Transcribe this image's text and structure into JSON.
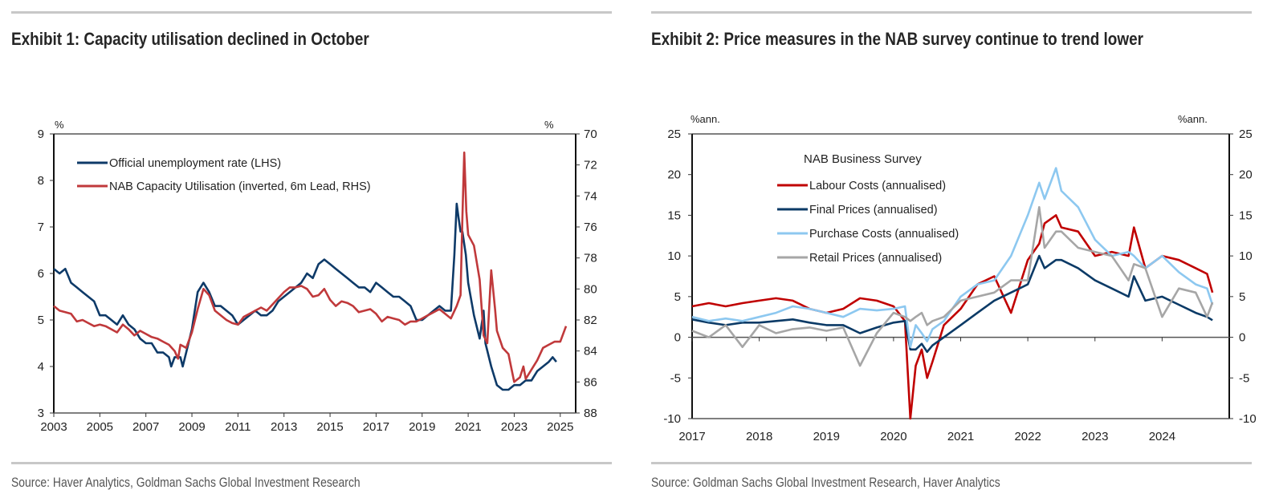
{
  "exhibit1": {
    "title": "Exhibit 1: Capacity utilisation declined in October",
    "source": "Source: Haver Analytics, Goldman Sachs Global Investment Research"
  },
  "exhibit2": {
    "title": "Exhibit 2: Price measures in the NAB survey continue to trend lower",
    "source": "Source: Goldman Sachs Global Investment Research, Haver Analytics"
  },
  "chart_data": [
    {
      "type": "line",
      "title": "Exhibit 1: Capacity utilisation declined in October",
      "xlabel": "",
      "ylabel_left": "%",
      "ylabel_right": "%",
      "xlim": [
        2003,
        2025.67
      ],
      "ylim_left": [
        3,
        9
      ],
      "ylim_right": [
        88,
        70
      ],
      "right_axis_inverted": true,
      "x_ticks": [
        "2003",
        "2005",
        "2007",
        "2009",
        "2011",
        "2013",
        "2015",
        "2017",
        "2019",
        "2021",
        "2023",
        "2025"
      ],
      "y_ticks_left": [
        "3",
        "4",
        "5",
        "6",
        "7",
        "8",
        "9"
      ],
      "y_ticks_right": [
        "70",
        "72",
        "74",
        "76",
        "78",
        "80",
        "82",
        "84",
        "86",
        "88"
      ],
      "grid": false,
      "legend_position": "top-left",
      "series": [
        {
          "name": "Official unemployment rate (LHS)",
          "axis": "left",
          "color": "#0e3a68",
          "x": [
            2003.0,
            2003.25,
            2003.5,
            2003.75,
            2004.0,
            2004.25,
            2004.5,
            2004.75,
            2005.0,
            2005.25,
            2005.5,
            2005.75,
            2006.0,
            2006.25,
            2006.5,
            2006.75,
            2007.0,
            2007.25,
            2007.5,
            2007.75,
            2008.0,
            2008.1,
            2008.25,
            2008.5,
            2008.6,
            2008.75,
            2009.0,
            2009.25,
            2009.5,
            2009.75,
            2010.0,
            2010.25,
            2010.5,
            2010.75,
            2011.0,
            2011.25,
            2011.5,
            2011.75,
            2012.0,
            2012.25,
            2012.5,
            2012.75,
            2013.0,
            2013.25,
            2013.5,
            2013.75,
            2014.0,
            2014.25,
            2014.5,
            2014.75,
            2015.0,
            2015.25,
            2015.5,
            2015.75,
            2016.0,
            2016.25,
            2016.5,
            2016.75,
            2017.0,
            2017.25,
            2017.5,
            2017.75,
            2018.0,
            2018.25,
            2018.5,
            2018.75,
            2019.0,
            2019.25,
            2019.5,
            2019.75,
            2020.0,
            2020.25,
            2020.4,
            2020.5,
            2020.58,
            2020.67,
            2020.75,
            2020.9,
            2021.0,
            2021.25,
            2021.5,
            2021.67,
            2021.75,
            2022.0,
            2022.25,
            2022.5,
            2022.75,
            2023.0,
            2023.25,
            2023.5,
            2023.75,
            2024.0,
            2024.25,
            2024.5,
            2024.67,
            2024.83
          ],
          "values": [
            6.1,
            6.0,
            6.1,
            5.8,
            5.7,
            5.6,
            5.5,
            5.4,
            5.1,
            5.1,
            5.0,
            4.9,
            5.1,
            4.9,
            4.8,
            4.6,
            4.5,
            4.5,
            4.3,
            4.3,
            4.2,
            4.0,
            4.2,
            4.2,
            4.0,
            4.3,
            4.8,
            5.6,
            5.8,
            5.6,
            5.3,
            5.3,
            5.2,
            5.1,
            4.9,
            5.0,
            5.1,
            5.2,
            5.1,
            5.1,
            5.2,
            5.4,
            5.5,
            5.6,
            5.7,
            5.8,
            6.0,
            5.9,
            6.2,
            6.3,
            6.2,
            6.1,
            6.0,
            5.9,
            5.8,
            5.7,
            5.7,
            5.6,
            5.8,
            5.7,
            5.6,
            5.5,
            5.5,
            5.4,
            5.3,
            5.0,
            5.0,
            5.1,
            5.2,
            5.3,
            5.2,
            5.2,
            6.4,
            7.5,
            7.2,
            6.9,
            6.9,
            6.4,
            5.8,
            5.1,
            4.6,
            5.2,
            4.5,
            4.0,
            3.6,
            3.5,
            3.5,
            3.6,
            3.6,
            3.7,
            3.7,
            3.9,
            4.0,
            4.1,
            4.2,
            4.1
          ]
        },
        {
          "name": "NAB Capacity Utilisation (inverted, 6m Lead, RHS)",
          "axis": "right",
          "color": "#c0393b",
          "x": [
            2003.0,
            2003.25,
            2003.5,
            2003.75,
            2004.0,
            2004.25,
            2004.5,
            2004.75,
            2005.0,
            2005.25,
            2005.5,
            2005.75,
            2006.0,
            2006.25,
            2006.5,
            2006.75,
            2007.0,
            2007.25,
            2007.5,
            2007.75,
            2008.0,
            2008.25,
            2008.4,
            2008.5,
            2008.75,
            2009.0,
            2009.25,
            2009.5,
            2009.75,
            2010.0,
            2010.25,
            2010.5,
            2010.75,
            2011.0,
            2011.25,
            2011.5,
            2011.75,
            2012.0,
            2012.25,
            2012.5,
            2012.75,
            2013.0,
            2013.25,
            2013.5,
            2013.75,
            2014.0,
            2014.25,
            2014.5,
            2014.75,
            2015.0,
            2015.25,
            2015.5,
            2015.75,
            2016.0,
            2016.25,
            2016.5,
            2016.75,
            2017.0,
            2017.25,
            2017.5,
            2017.75,
            2018.0,
            2018.25,
            2018.5,
            2018.75,
            2019.0,
            2019.25,
            2019.5,
            2019.75,
            2020.0,
            2020.25,
            2020.5,
            2020.67,
            2020.75,
            2020.83,
            2020.92,
            2021.0,
            2021.25,
            2021.5,
            2021.67,
            2021.83,
            2022.0,
            2022.17,
            2022.25,
            2022.5,
            2022.75,
            2023.0,
            2023.25,
            2023.4,
            2023.5,
            2023.75,
            2024.0,
            2024.25,
            2024.5,
            2024.75,
            2025.0,
            2025.25
          ],
          "values": [
            81.1,
            81.4,
            81.5,
            81.6,
            82.1,
            82.0,
            82.2,
            82.4,
            82.3,
            82.4,
            82.6,
            82.8,
            82.3,
            82.6,
            83.0,
            82.7,
            82.9,
            83.1,
            83.2,
            83.4,
            83.6,
            84.0,
            84.5,
            83.6,
            83.8,
            82.8,
            81.3,
            80.0,
            80.4,
            81.4,
            81.7,
            82.0,
            82.2,
            82.3,
            81.8,
            81.6,
            81.4,
            81.2,
            81.4,
            81.0,
            80.6,
            80.2,
            79.9,
            79.9,
            79.8,
            80.0,
            80.5,
            80.4,
            80.0,
            80.7,
            81.1,
            80.8,
            80.9,
            81.1,
            81.5,
            81.4,
            81.3,
            81.6,
            82.1,
            81.8,
            81.9,
            82.0,
            82.3,
            82.1,
            82.1,
            81.9,
            81.7,
            81.5,
            81.3,
            81.6,
            81.9,
            81.1,
            80.4,
            75.4,
            71.2,
            75.0,
            76.5,
            77.2,
            79.4,
            83.0,
            83.5,
            78.8,
            81.3,
            82.7,
            83.8,
            84.2,
            86.0,
            85.7,
            85.0,
            85.8,
            85.2,
            84.6,
            83.8,
            83.6,
            83.4,
            83.4,
            82.4
          ]
        }
      ]
    },
    {
      "type": "line",
      "title": "Exhibit 2: Price measures in the NAB survey continue to trend lower",
      "xlabel": "",
      "ylabel_left": "%ann.",
      "ylabel_right": "%ann.",
      "xlim": [
        2017,
        2025
      ],
      "ylim": [
        -10,
        25
      ],
      "x_ticks": [
        "2017",
        "2018",
        "2019",
        "2020",
        "2021",
        "2022",
        "2023",
        "2024"
      ],
      "y_ticks": [
        "-10",
        "-5",
        "0",
        "5",
        "10",
        "15",
        "20",
        "25"
      ],
      "grid": false,
      "legend_title": "NAB Business Survey",
      "legend_position": "top-center",
      "x": [
        2017.0,
        2017.25,
        2017.5,
        2017.75,
        2018.0,
        2018.25,
        2018.5,
        2018.75,
        2019.0,
        2019.25,
        2019.5,
        2019.75,
        2020.0,
        2020.17,
        2020.25,
        2020.33,
        2020.42,
        2020.5,
        2020.58,
        2020.75,
        2021.0,
        2021.25,
        2021.5,
        2021.75,
        2022.0,
        2022.17,
        2022.25,
        2022.42,
        2022.5,
        2022.75,
        2023.0,
        2023.25,
        2023.5,
        2023.58,
        2023.75,
        2024.0,
        2024.25,
        2024.5,
        2024.67,
        2024.75
      ],
      "series": [
        {
          "name": "Labour Costs (annualised)",
          "color": "#c00000",
          "values": [
            3.8,
            4.2,
            3.8,
            4.2,
            4.5,
            4.8,
            4.5,
            3.5,
            3.0,
            3.5,
            4.8,
            4.5,
            3.8,
            2.0,
            -10.0,
            -3.5,
            -1.5,
            -5.0,
            -3.0,
            1.5,
            3.5,
            6.5,
            7.5,
            3.0,
            9.5,
            11.5,
            14.0,
            15.0,
            13.5,
            13.0,
            10.0,
            10.5,
            10.0,
            13.5,
            8.5,
            10.0,
            9.5,
            8.5,
            7.8,
            5.5
          ]
        },
        {
          "name": "Final Prices (annualised)",
          "color": "#0b3a66",
          "values": [
            2.2,
            1.8,
            1.5,
            1.8,
            1.8,
            2.0,
            2.2,
            1.8,
            1.5,
            1.5,
            0.5,
            1.2,
            1.8,
            2.0,
            -1.5,
            -1.5,
            -0.8,
            -1.8,
            -1.0,
            0.0,
            1.5,
            3.0,
            4.5,
            5.5,
            6.5,
            10.0,
            8.5,
            9.5,
            9.5,
            8.5,
            7.0,
            6.0,
            5.0,
            7.5,
            4.5,
            5.0,
            4.0,
            3.0,
            2.5,
            2.1
          ]
        },
        {
          "name": "Purchase Costs (annualised)",
          "color": "#8dc8f0",
          "values": [
            2.5,
            2.0,
            2.3,
            2.0,
            2.5,
            3.0,
            3.8,
            3.5,
            3.0,
            2.5,
            3.5,
            3.3,
            3.5,
            3.8,
            -1.2,
            1.5,
            0.5,
            -0.5,
            1.0,
            2.0,
            5.0,
            6.5,
            7.0,
            10.0,
            15.0,
            19.0,
            17.0,
            20.8,
            18.0,
            16.0,
            12.0,
            10.0,
            10.5,
            10.0,
            8.5,
            10.0,
            8.0,
            6.5,
            6.0,
            4.0
          ]
        },
        {
          "name": "Retail Prices (annualised)",
          "color": "#a6a6a6",
          "values": [
            0.8,
            0.0,
            1.5,
            -1.2,
            1.5,
            0.5,
            1.0,
            1.2,
            0.8,
            1.2,
            -3.5,
            0.5,
            3.0,
            2.5,
            2.0,
            2.5,
            3.0,
            1.5,
            2.0,
            2.5,
            4.5,
            5.0,
            5.5,
            7.0,
            7.0,
            16.0,
            11.0,
            13.0,
            13.0,
            11.0,
            10.5,
            10.0,
            7.0,
            9.0,
            8.5,
            2.5,
            6.0,
            5.5,
            2.5,
            4.3
          ]
        }
      ]
    }
  ]
}
